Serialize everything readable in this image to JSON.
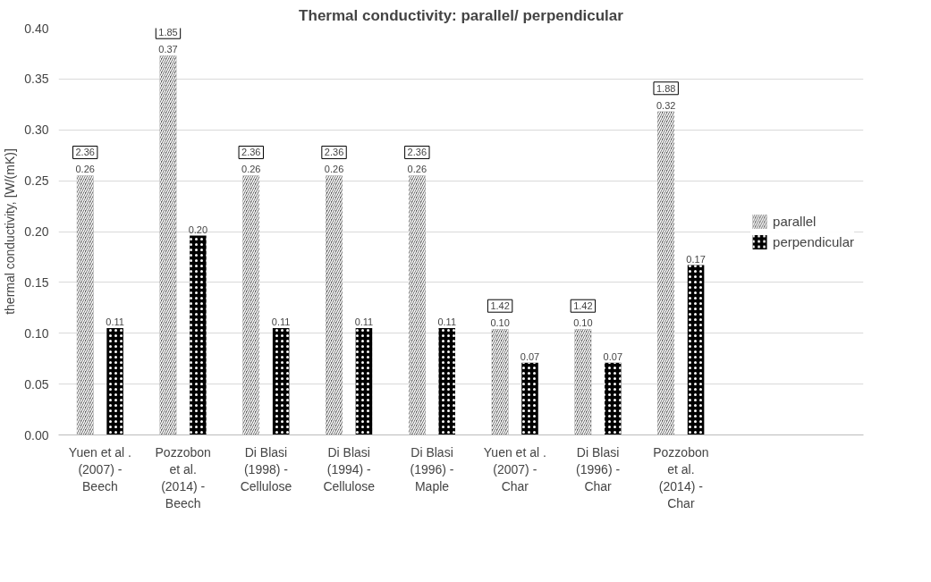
{
  "chart_data": {
    "type": "bar",
    "title": "Thermal conductivity: parallel/ perpendicular",
    "ylabel": "thermal conductivity, [W/(mK)]",
    "categories": [
      "Yuen et al .\n(2007) -\nBeech",
      "Pozzobon\net al.\n(2014) -\nBeech",
      "Di Blasi\n(1998) -\nCellulose",
      "Di Blasi\n(1994) -\nCellulose",
      "Di Blasi\n(1996) -\nMaple",
      "Yuen et al .\n(2007) -\nChar",
      "Di Blasi\n(1996) -\nChar",
      "Pozzobon\net al.\n(2014) -\nChar"
    ],
    "series": [
      {
        "name": "parallel",
        "color": "#555555",
        "values": [
          0.255,
          0.373,
          0.255,
          0.255,
          0.255,
          0.104,
          0.104,
          0.318
        ],
        "value_labels": [
          "0.26",
          "0.37",
          "0.26",
          "0.26",
          "0.26",
          "0.10",
          "0.10",
          "0.32"
        ]
      },
      {
        "name": "perpendicular",
        "color": "#000000",
        "values": [
          0.105,
          0.196,
          0.105,
          0.105,
          0.105,
          0.071,
          0.071,
          0.167
        ],
        "value_labels": [
          "0.11",
          "0.20",
          "0.11",
          "0.11",
          "0.11",
          "0.07",
          "0.07",
          "0.17"
        ]
      }
    ],
    "annotations": [
      "2.36",
      "1.85",
      "2.36",
      "2.36",
      "2.36",
      "1.42",
      "1.42",
      "1.88"
    ],
    "ylim": [
      0,
      0.4
    ],
    "yticks": [
      {
        "value": 0,
        "label": "0.00"
      },
      {
        "value": 0.05,
        "label": "0.05"
      },
      {
        "value": 0.1,
        "label": "0.10"
      },
      {
        "value": 0.15,
        "label": "0.15"
      },
      {
        "value": 0.2,
        "label": "0.20"
      },
      {
        "value": 0.25,
        "label": "0.25"
      },
      {
        "value": 0.3,
        "label": "0.30"
      },
      {
        "value": 0.35,
        "label": "0.35"
      },
      {
        "value": 0.4,
        "label": "0.40"
      }
    ],
    "grid": "y",
    "legend": "right"
  }
}
